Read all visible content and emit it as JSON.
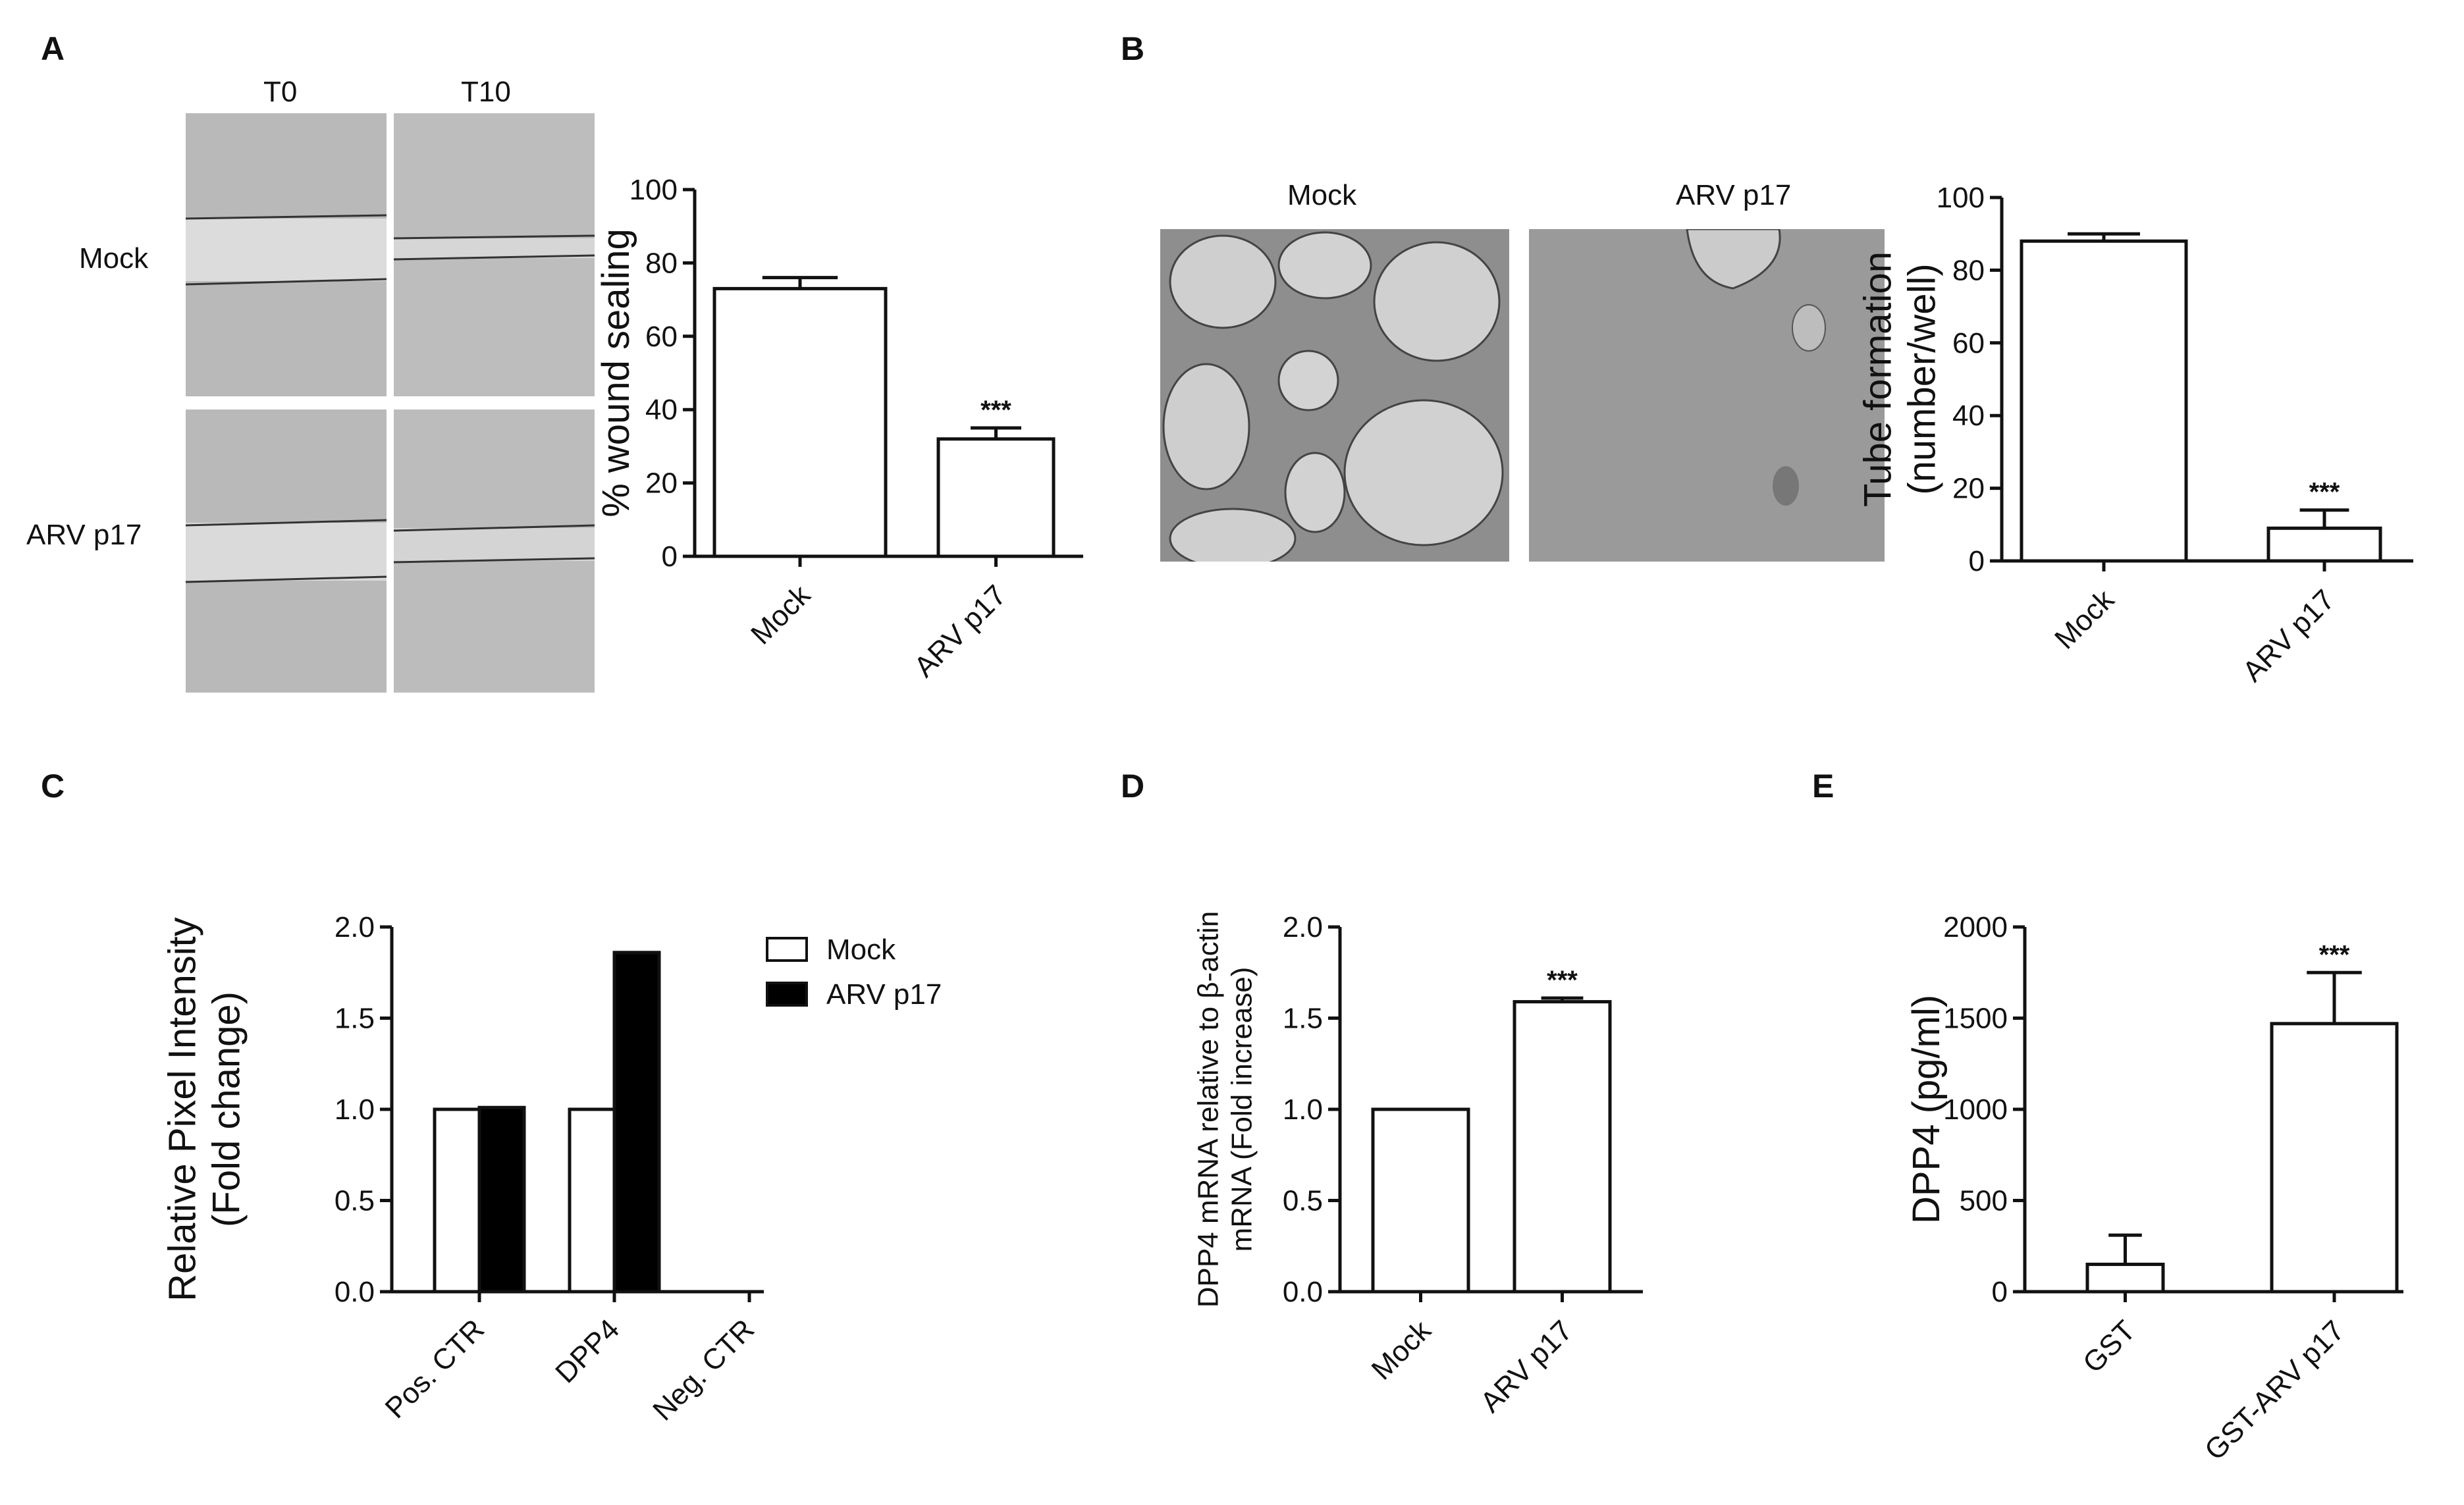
{
  "panels": {
    "A": {
      "label": "A",
      "col_labels": [
        "T0",
        "T10"
      ],
      "row_labels": [
        "Mock",
        "ARV p17"
      ]
    },
    "B": {
      "label": "B",
      "image_labels": [
        "Mock",
        "ARV p17"
      ]
    },
    "C": {
      "label": "C"
    },
    "D": {
      "label": "D"
    },
    "E": {
      "label": "E"
    }
  },
  "chart_data": [
    {
      "id": "A",
      "type": "bar",
      "categories": [
        "Mock",
        "ARV p17"
      ],
      "series": [
        {
          "values": [
            73,
            32
          ],
          "errors": [
            3,
            3
          ]
        }
      ],
      "ylabel": "% wound sealing",
      "ylim": [
        0,
        100
      ],
      "yticks": [
        0,
        20,
        40,
        60,
        80,
        100
      ],
      "annotations": [
        {
          "category": "ARV p17",
          "text": "***"
        }
      ],
      "bar_colors": [
        "#ffffff",
        "#ffffff"
      ]
    },
    {
      "id": "B",
      "type": "bar",
      "categories": [
        "Mock",
        "ARV p17"
      ],
      "series": [
        {
          "values": [
            88,
            9
          ],
          "errors": [
            2,
            5
          ]
        }
      ],
      "ylabel": [
        "Tube formation",
        "(number/well)"
      ],
      "ylim": [
        0,
        100
      ],
      "yticks": [
        0,
        20,
        40,
        60,
        80,
        100
      ],
      "annotations": [
        {
          "category": "ARV p17",
          "text": "***"
        }
      ],
      "bar_colors": [
        "#ffffff",
        "#ffffff"
      ]
    },
    {
      "id": "C",
      "type": "bar",
      "categories": [
        "Pos. CTR",
        "DPP4",
        "Neg. CTR"
      ],
      "series": [
        {
          "name": "Mock",
          "values": [
            1.0,
            1.0,
            0
          ],
          "color": "#ffffff"
        },
        {
          "name": "ARV p17",
          "values": [
            1.01,
            1.86,
            0
          ],
          "color": "#000000"
        }
      ],
      "ylabel": [
        "Relative Pixel Intensity",
        "(Fold change)"
      ],
      "ylim": [
        0,
        2.0
      ],
      "yticks": [
        0.0,
        0.5,
        1.0,
        1.5,
        2.0
      ],
      "legend": "right"
    },
    {
      "id": "D",
      "type": "bar",
      "categories": [
        "Mock",
        "ARV p17"
      ],
      "series": [
        {
          "values": [
            1.0,
            1.59
          ],
          "errors": [
            0,
            0.02
          ]
        }
      ],
      "ylabel": [
        "DPP4 mRNA relative to β-actin",
        "mRNA (Fold increase)"
      ],
      "ylim": [
        0,
        2.0
      ],
      "yticks": [
        0.0,
        0.5,
        1.0,
        1.5,
        2.0
      ],
      "annotations": [
        {
          "category": "ARV p17",
          "text": "***"
        }
      ],
      "bar_colors": [
        "#ffffff",
        "#ffffff"
      ]
    },
    {
      "id": "E",
      "type": "bar",
      "categories": [
        "GST",
        "GST-ARV p17"
      ],
      "series": [
        {
          "values": [
            150,
            1470
          ],
          "errors": [
            160,
            280
          ]
        }
      ],
      "ylabel": "DPP4 (pg/ml)",
      "ylim": [
        0,
        2000
      ],
      "yticks": [
        0,
        500,
        1000,
        1500,
        2000
      ],
      "annotations": [
        {
          "category": "GST-ARV p17",
          "text": "***"
        }
      ],
      "bar_colors": [
        "#ffffff",
        "#ffffff"
      ]
    }
  ]
}
